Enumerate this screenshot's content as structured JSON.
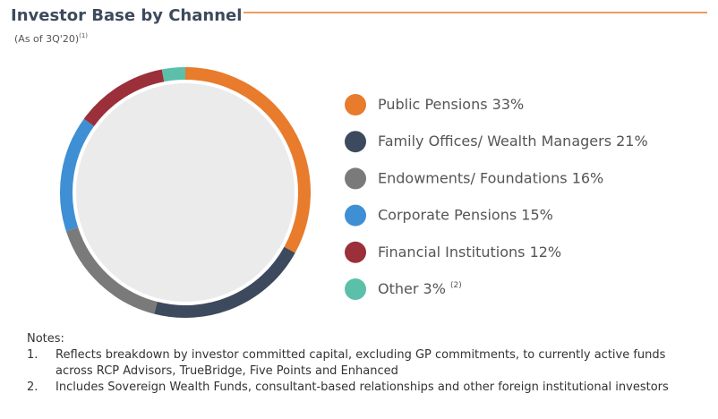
{
  "chart_data": {
    "type": "donut",
    "title": "Investor Base by Channel",
    "subtitle": "(As of 3Q'20)",
    "subtitle_note": "(1)",
    "categories": [
      "Public Pensions",
      "Family Offices/ Wealth Managers",
      "Endowments/ Foundations",
      "Corporate Pensions",
      "Financial Institutions",
      "Other"
    ],
    "values": [
      33,
      21,
      16,
      15,
      12,
      3
    ],
    "value_labels": [
      "33%",
      "21%",
      "16%",
      "15%",
      "12%",
      "3%"
    ],
    "label_notes": [
      null,
      null,
      null,
      null,
      null,
      "(2)"
    ],
    "colors": [
      "#e87b2c",
      "#3d4a5e",
      "#7a7a7a",
      "#3f8fd4",
      "#9b2f3a",
      "#5bbfaa"
    ],
    "legend": "right"
  },
  "notes": {
    "heading": "Notes:",
    "items": [
      {
        "marker": "1.",
        "text": "Reflects breakdown by investor committed capital, excluding GP commitments, to currently active funds across RCP Advisors, TrueBridge, Five Points and Enhanced"
      },
      {
        "marker": "2.",
        "text": "Includes Sovereign Wealth Funds, consultant-based relationships and other foreign institutional investors"
      }
    ]
  }
}
